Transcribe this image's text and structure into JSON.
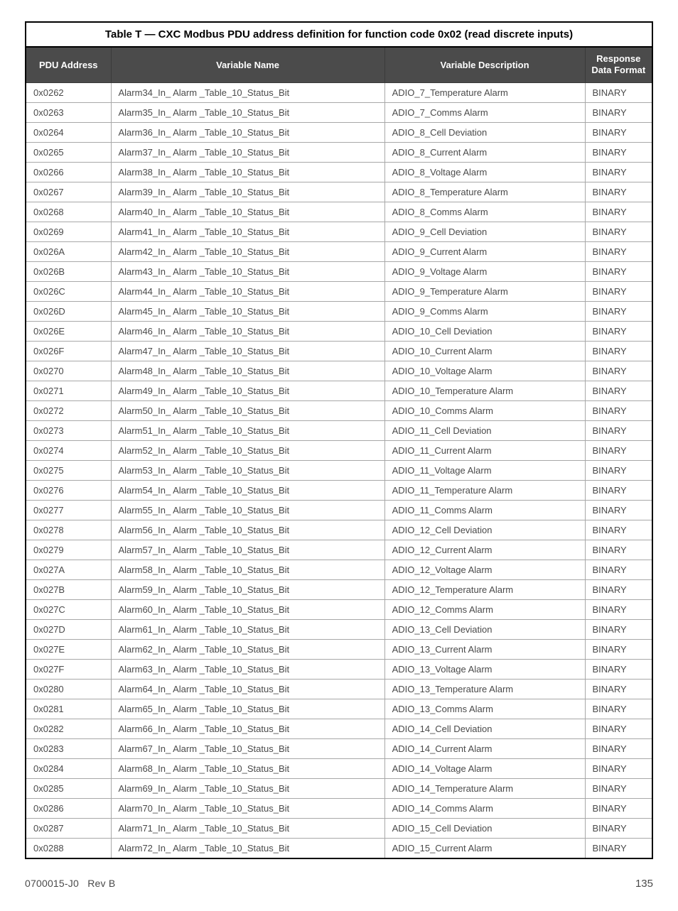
{
  "table": {
    "caption": "Table T  —  CXC Modbus PDU address definition for function code 0x02 (read discrete inputs)",
    "columns": [
      "PDU Address",
      "Variable Name",
      "Variable Description",
      "Response Data Format"
    ],
    "rows": [
      [
        "0x0262",
        "Alarm34_In_ Alarm _Table_10_Status_Bit",
        "ADIO_7_Temperature Alarm",
        "BINARY"
      ],
      [
        "0x0263",
        "Alarm35_In_ Alarm _Table_10_Status_Bit",
        "ADIO_7_Comms Alarm",
        "BINARY"
      ],
      [
        "0x0264",
        "Alarm36_In_ Alarm _Table_10_Status_Bit",
        "ADIO_8_Cell Deviation",
        "BINARY"
      ],
      [
        "0x0265",
        "Alarm37_In_ Alarm _Table_10_Status_Bit",
        "ADIO_8_Current Alarm",
        "BINARY"
      ],
      [
        "0x0266",
        "Alarm38_In_ Alarm _Table_10_Status_Bit",
        "ADIO_8_Voltage Alarm",
        "BINARY"
      ],
      [
        "0x0267",
        "Alarm39_In_ Alarm _Table_10_Status_Bit",
        "ADIO_8_Temperature Alarm",
        "BINARY"
      ],
      [
        "0x0268",
        "Alarm40_In_ Alarm _Table_10_Status_Bit",
        "ADIO_8_Comms Alarm",
        "BINARY"
      ],
      [
        "0x0269",
        "Alarm41_In_ Alarm _Table_10_Status_Bit",
        "ADIO_9_Cell Deviation",
        "BINARY"
      ],
      [
        "0x026A",
        "Alarm42_In_ Alarm _Table_10_Status_Bit",
        "ADIO_9_Current Alarm",
        "BINARY"
      ],
      [
        "0x026B",
        "Alarm43_In_ Alarm _Table_10_Status_Bit",
        "ADIO_9_Voltage Alarm",
        "BINARY"
      ],
      [
        "0x026C",
        "Alarm44_In_ Alarm _Table_10_Status_Bit",
        "ADIO_9_Temperature Alarm",
        "BINARY"
      ],
      [
        "0x026D",
        "Alarm45_In_ Alarm _Table_10_Status_Bit",
        "ADIO_9_Comms Alarm",
        "BINARY"
      ],
      [
        "0x026E",
        "Alarm46_In_ Alarm _Table_10_Status_Bit",
        "ADIO_10_Cell Deviation",
        "BINARY"
      ],
      [
        "0x026F",
        "Alarm47_In_ Alarm _Table_10_Status_Bit",
        "ADIO_10_Current Alarm",
        "BINARY"
      ],
      [
        "0x0270",
        "Alarm48_In_ Alarm _Table_10_Status_Bit",
        "ADIO_10_Voltage Alarm",
        "BINARY"
      ],
      [
        "0x0271",
        "Alarm49_In_ Alarm _Table_10_Status_Bit",
        "ADIO_10_Temperature Alarm",
        "BINARY"
      ],
      [
        "0x0272",
        "Alarm50_In_ Alarm _Table_10_Status_Bit",
        "ADIO_10_Comms Alarm",
        "BINARY"
      ],
      [
        "0x0273",
        "Alarm51_In_ Alarm _Table_10_Status_Bit",
        "ADIO_11_Cell Deviation",
        "BINARY"
      ],
      [
        "0x0274",
        "Alarm52_In_ Alarm _Table_10_Status_Bit",
        "ADIO_11_Current Alarm",
        "BINARY"
      ],
      [
        "0x0275",
        "Alarm53_In_ Alarm _Table_10_Status_Bit",
        "ADIO_11_Voltage Alarm",
        "BINARY"
      ],
      [
        "0x0276",
        "Alarm54_In_ Alarm _Table_10_Status_Bit",
        "ADIO_11_Temperature Alarm",
        "BINARY"
      ],
      [
        "0x0277",
        "Alarm55_In_ Alarm _Table_10_Status_Bit",
        "ADIO_11_Comms Alarm",
        "BINARY"
      ],
      [
        "0x0278",
        "Alarm56_In_ Alarm _Table_10_Status_Bit",
        "ADIO_12_Cell Deviation",
        "BINARY"
      ],
      [
        "0x0279",
        "Alarm57_In_ Alarm _Table_10_Status_Bit",
        "ADIO_12_Current Alarm",
        "BINARY"
      ],
      [
        "0x027A",
        "Alarm58_In_ Alarm _Table_10_Status_Bit",
        "ADIO_12_Voltage Alarm",
        "BINARY"
      ],
      [
        "0x027B",
        "Alarm59_In_ Alarm _Table_10_Status_Bit",
        "ADIO_12_Temperature Alarm",
        "BINARY"
      ],
      [
        "0x027C",
        "Alarm60_In_ Alarm _Table_10_Status_Bit",
        "ADIO_12_Comms Alarm",
        "BINARY"
      ],
      [
        "0x027D",
        "Alarm61_In_ Alarm _Table_10_Status_Bit",
        "ADIO_13_Cell Deviation",
        "BINARY"
      ],
      [
        "0x027E",
        "Alarm62_In_ Alarm _Table_10_Status_Bit",
        "ADIO_13_Current Alarm",
        "BINARY"
      ],
      [
        "0x027F",
        "Alarm63_In_ Alarm _Table_10_Status_Bit",
        "ADIO_13_Voltage Alarm",
        "BINARY"
      ],
      [
        "0x0280",
        "Alarm64_In_ Alarm _Table_10_Status_Bit",
        "ADIO_13_Temperature Alarm",
        "BINARY"
      ],
      [
        "0x0281",
        "Alarm65_In_ Alarm _Table_10_Status_Bit",
        "ADIO_13_Comms Alarm",
        "BINARY"
      ],
      [
        "0x0282",
        "Alarm66_In_ Alarm _Table_10_Status_Bit",
        "ADIO_14_Cell Deviation",
        "BINARY"
      ],
      [
        "0x0283",
        "Alarm67_In_ Alarm _Table_10_Status_Bit",
        "ADIO_14_Current Alarm",
        "BINARY"
      ],
      [
        "0x0284",
        "Alarm68_In_ Alarm _Table_10_Status_Bit",
        "ADIO_14_Voltage Alarm",
        "BINARY"
      ],
      [
        "0x0285",
        "Alarm69_In_ Alarm _Table_10_Status_Bit",
        "ADIO_14_Temperature Alarm",
        "BINARY"
      ],
      [
        "0x0286",
        "Alarm70_In_ Alarm _Table_10_Status_Bit",
        "ADIO_14_Comms Alarm",
        "BINARY"
      ],
      [
        "0x0287",
        "Alarm71_In_ Alarm _Table_10_Status_Bit",
        "ADIO_15_Cell Deviation",
        "BINARY"
      ],
      [
        "0x0288",
        "Alarm72_In_ Alarm _Table_10_Status_Bit",
        "ADIO_15_Current Alarm",
        "BINARY"
      ]
    ]
  },
  "footer": {
    "doc_id": "0700015-J0",
    "rev": "Rev B",
    "page": "135"
  }
}
